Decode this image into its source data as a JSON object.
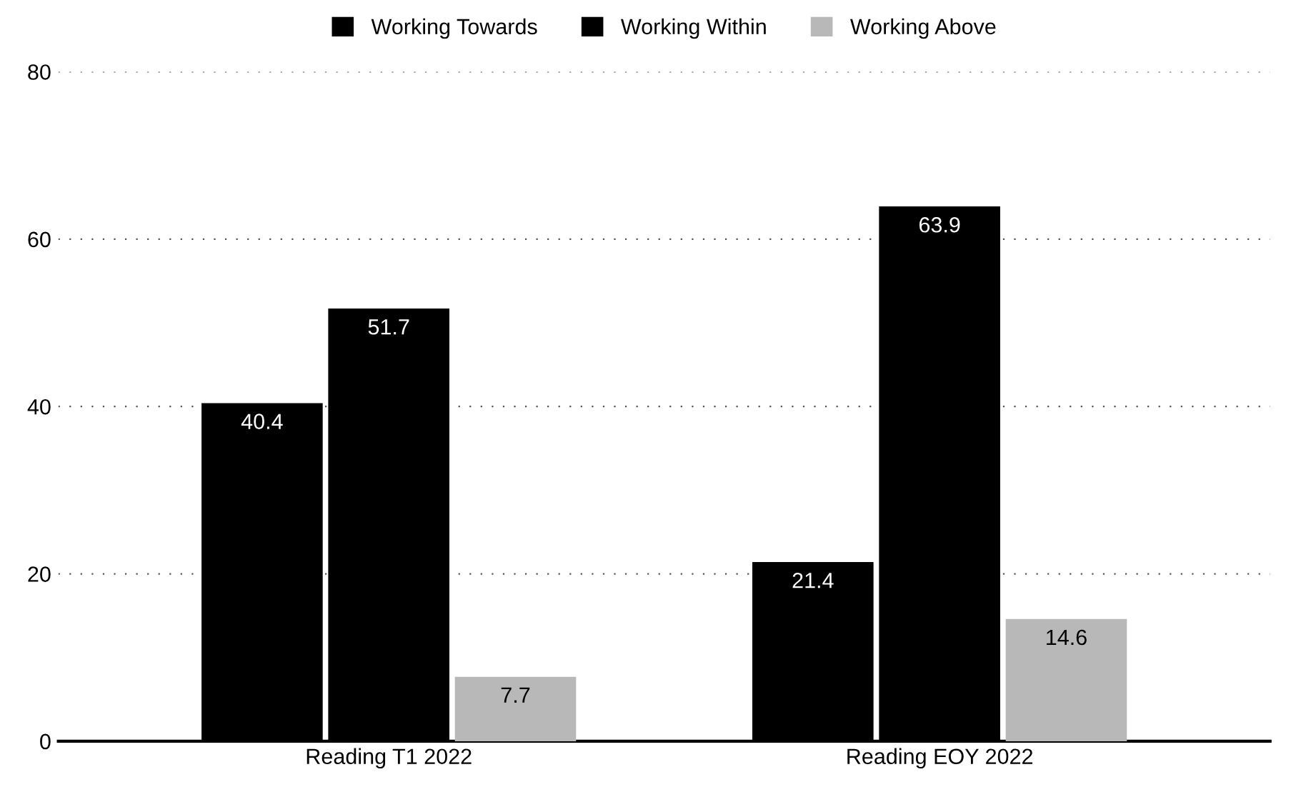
{
  "chart_data": {
    "type": "bar",
    "categories": [
      "Reading T1 2022",
      "Reading EOY 2022"
    ],
    "series": [
      {
        "name": "Working Towards",
        "color": "#000000",
        "values": [
          40.4,
          21.4
        ]
      },
      {
        "name": "Working Within",
        "color": "#000000",
        "values": [
          51.7,
          63.9
        ]
      },
      {
        "name": "Working Above",
        "color": "#b8b8b8",
        "values": [
          7.7,
          14.6
        ]
      }
    ],
    "ylim": [
      0,
      80
    ],
    "yticks": [
      0,
      20,
      40,
      60,
      80
    ],
    "grid": "y",
    "legend": "top",
    "data_labels": true
  }
}
